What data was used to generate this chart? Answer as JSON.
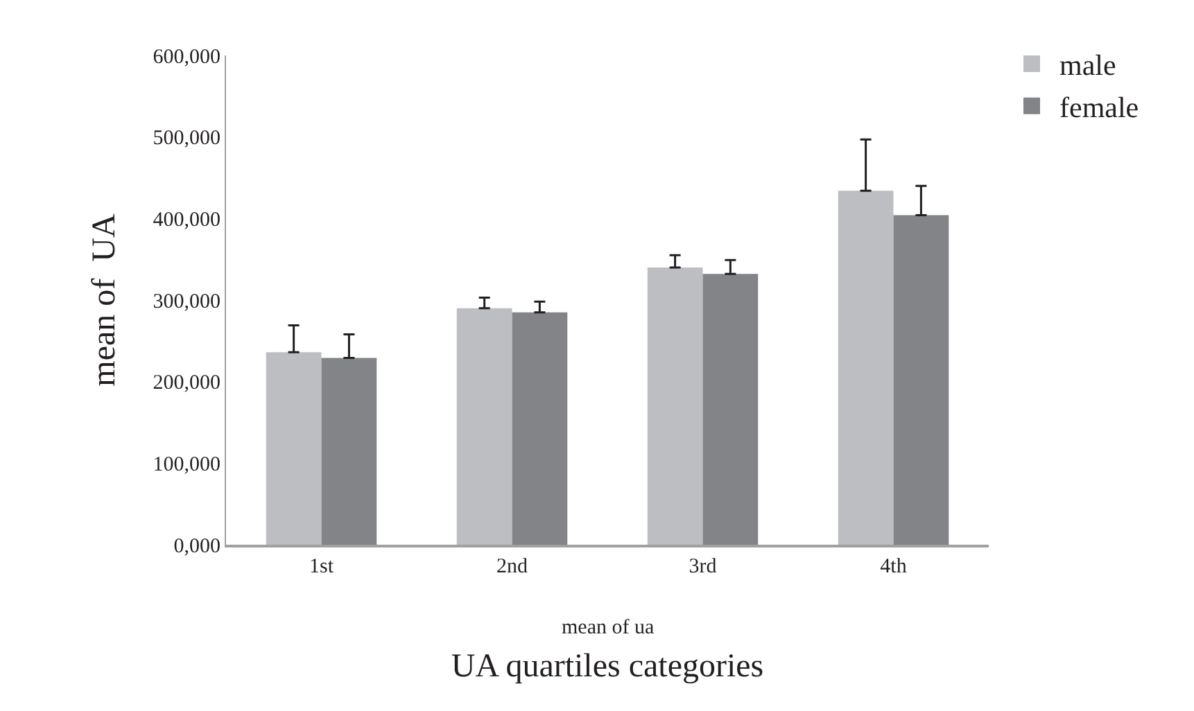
{
  "chart_data": {
    "type": "bar",
    "xlabel": "UA quartiles categories",
    "ylabel": "mean of  UA",
    "categories": [
      "1st",
      "2nd",
      "3rd",
      "4th"
    ],
    "series": [
      {
        "name": "male",
        "color": "#bdbec2",
        "values": [
          236000,
          290000,
          340000,
          434000
        ],
        "errors": [
          [
            236000,
            269000
          ],
          [
            290000,
            303000
          ],
          [
            340000,
            355000
          ],
          [
            434000,
            497000
          ]
        ]
      },
      {
        "name": "female",
        "color": "#838488",
        "values": [
          229000,
          285000,
          332000,
          404000
        ],
        "errors": [
          [
            229000,
            258000
          ],
          [
            285000,
            298000
          ],
          [
            332000,
            349000
          ],
          [
            404000,
            440000
          ]
        ]
      }
    ],
    "ylim": [
      0,
      600000
    ],
    "yticks": [
      {
        "value": 0,
        "label": "0,000"
      },
      {
        "value": 100000,
        "label": "100,000"
      },
      {
        "value": 200000,
        "label": "200,000"
      },
      {
        "value": 300000,
        "label": "300,000"
      },
      {
        "value": 400000,
        "label": "400,000"
      },
      {
        "value": 500000,
        "label": "500,000"
      },
      {
        "value": 600000,
        "label": "600,000"
      }
    ],
    "annotations": [
      "mean of ua"
    ],
    "grid": false,
    "legend": "top right"
  }
}
